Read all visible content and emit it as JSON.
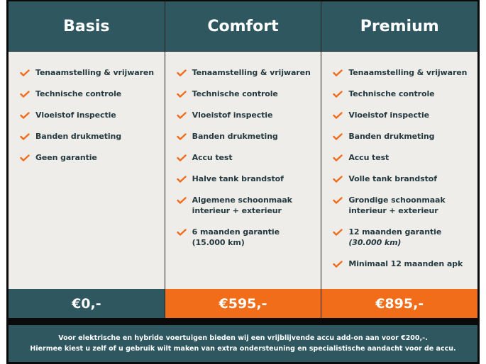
{
  "colors": {
    "header": "#2f5760",
    "accent": "#f26d1a",
    "body": "#eeede9"
  },
  "plans": [
    {
      "title": "Basis",
      "price": "€0,-",
      "price_color": "#2f5760",
      "items": [
        {
          "text": "Tenaamstelling & vrijwaren"
        },
        {
          "text": "Technische controle"
        },
        {
          "text": "Vloeistof inspectie"
        },
        {
          "text": "Banden drukmeting"
        },
        {
          "text": "Geen garantie"
        }
      ]
    },
    {
      "title": "Comfort",
      "price": "€595,-",
      "price_color": "#f26d1a",
      "items": [
        {
          "text": "Tenaamstelling & vrijwaren"
        },
        {
          "text": "Technische controle"
        },
        {
          "text": "Vloeistof inspectie"
        },
        {
          "text": "Banden drukmeting"
        },
        {
          "text": "Accu test"
        },
        {
          "text": "Halve tank brandstof"
        },
        {
          "text": "Algemene schoonmaak",
          "sub": "interieur + exterieur"
        },
        {
          "text": "6 maanden garantie",
          "sub": "(15.000 km)"
        }
      ]
    },
    {
      "title": "Premium",
      "price": "€895,-",
      "price_color": "#f26d1a",
      "items": [
        {
          "text": "Tenaamstelling & vrijwaren"
        },
        {
          "text": "Technische controle"
        },
        {
          "text": "Vloeistof inspectie"
        },
        {
          "text": "Banden drukmeting"
        },
        {
          "text": "Accu test"
        },
        {
          "text": "Volle tank brandstof"
        },
        {
          "text": "Grondige schoonmaak",
          "sub": "interieur + exterieur"
        },
        {
          "text": "12 maanden garantie",
          "sub": "(30.000 km)",
          "sub_italic": true
        },
        {
          "text": "Minimaal 12 maanden apk"
        }
      ]
    }
  ],
  "footer": {
    "line1": "Voor elektrische en hybride voertuigen bieden wij een vrijblijvende accu add-on aan voor €200,-.",
    "line2": "Hiermee kiest u zelf of u gebruik wilt maken van extra ondersteuning en specialistische aandacht voor de accu."
  }
}
